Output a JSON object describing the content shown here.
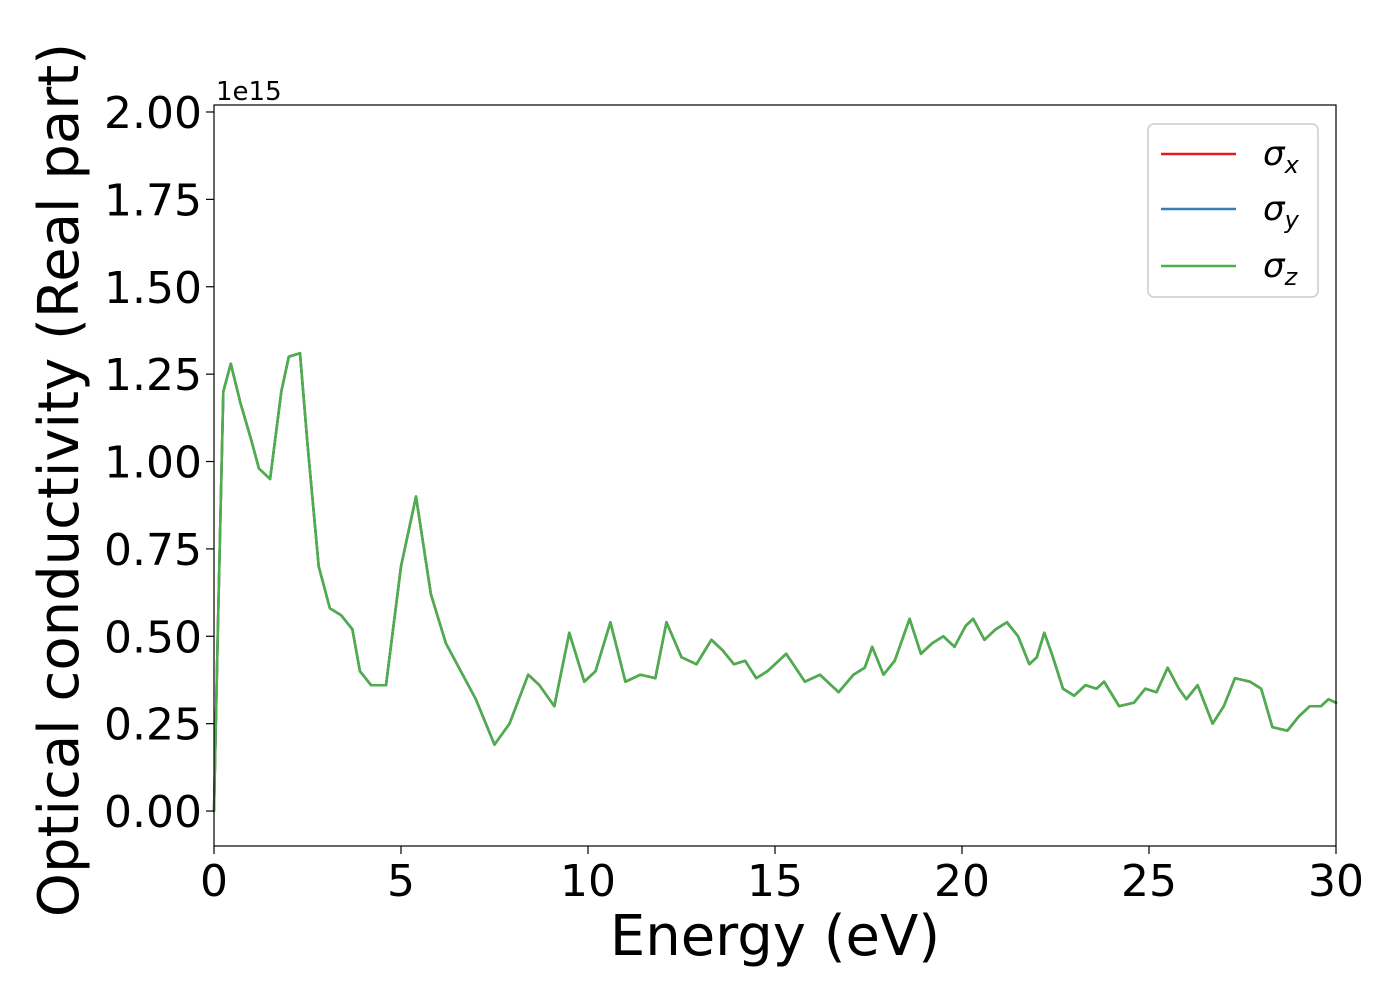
{
  "chart_data": {
    "type": "line",
    "xlabel": "Energy (eV)",
    "ylabel": "Optical conductivity (Real part)",
    "y_offset_label": "1e15",
    "xlim": [
      0,
      30
    ],
    "ylim": [
      -0.1,
      2.02
    ],
    "y_multiplier": 1000000000000000.0,
    "grid": false,
    "legend_position": "top-right",
    "x_ticks": [
      0,
      5,
      10,
      15,
      20,
      25,
      30
    ],
    "x_tick_labels": [
      "0",
      "5",
      "10",
      "15",
      "20",
      "25",
      "30"
    ],
    "y_ticks": [
      0,
      0.25,
      0.5,
      0.75,
      1.0,
      1.25,
      1.5,
      1.75,
      2.0
    ],
    "y_tick_labels": [
      "0.00",
      "0.25",
      "0.50",
      "0.75",
      "1.00",
      "1.25",
      "1.50",
      "1.75",
      "2.00"
    ],
    "x": [
      0,
      0.1,
      0.25,
      0.45,
      0.7,
      1.0,
      1.2,
      1.5,
      1.8,
      2.0,
      2.3,
      2.5,
      2.8,
      3.1,
      3.4,
      3.7,
      3.9,
      4.2,
      4.6,
      5.0,
      5.4,
      5.8,
      6.2,
      6.6,
      7.0,
      7.5,
      7.9,
      8.4,
      8.7,
      9.1,
      9.5,
      9.9,
      10.2,
      10.6,
      11.0,
      11.4,
      11.8,
      12.1,
      12.5,
      12.9,
      13.3,
      13.6,
      13.9,
      14.2,
      14.5,
      14.8,
      15.3,
      15.8,
      16.2,
      16.7,
      17.1,
      17.4,
      17.6,
      17.9,
      18.2,
      18.6,
      18.9,
      19.2,
      19.5,
      19.8,
      20.1,
      20.3,
      20.6,
      20.9,
      21.2,
      21.5,
      21.8,
      22.0,
      22.2,
      22.4,
      22.7,
      23.0,
      23.3,
      23.6,
      23.8,
      24.2,
      24.6,
      24.9,
      25.2,
      25.5,
      25.8,
      26.0,
      26.3,
      26.7,
      27.0,
      27.3,
      27.7,
      28.0,
      28.3,
      28.7,
      29.0,
      29.3,
      29.6,
      29.8,
      30.0
    ],
    "series": [
      {
        "name": "σx",
        "color": "#e41a1c",
        "values": [
          0.0,
          0.5,
          1.2,
          1.28,
          1.17,
          1.06,
          0.98,
          0.95,
          1.2,
          1.3,
          1.31,
          1.05,
          0.7,
          0.58,
          0.56,
          0.52,
          0.4,
          0.36,
          0.36,
          0.7,
          0.9,
          0.62,
          0.48,
          0.4,
          0.32,
          0.19,
          0.25,
          0.39,
          0.36,
          0.3,
          0.51,
          0.37,
          0.4,
          0.54,
          0.37,
          0.39,
          0.38,
          0.54,
          0.44,
          0.42,
          0.49,
          0.46,
          0.42,
          0.43,
          0.38,
          0.4,
          0.45,
          0.37,
          0.39,
          0.34,
          0.39,
          0.41,
          0.47,
          0.39,
          0.43,
          0.55,
          0.45,
          0.48,
          0.5,
          0.47,
          0.53,
          0.55,
          0.49,
          0.52,
          0.54,
          0.5,
          0.42,
          0.44,
          0.51,
          0.45,
          0.35,
          0.33,
          0.36,
          0.35,
          0.37,
          0.3,
          0.31,
          0.35,
          0.34,
          0.41,
          0.35,
          0.32,
          0.36,
          0.25,
          0.3,
          0.38,
          0.37,
          0.35,
          0.24,
          0.23,
          0.27,
          0.3,
          0.3,
          0.32,
          0.31
        ]
      },
      {
        "name": "σy",
        "color": "#377eb8",
        "values": [
          0.0,
          0.5,
          1.2,
          1.28,
          1.17,
          1.06,
          0.98,
          0.95,
          1.2,
          1.3,
          1.31,
          1.05,
          0.7,
          0.58,
          0.56,
          0.52,
          0.4,
          0.36,
          0.36,
          0.7,
          0.9,
          0.62,
          0.48,
          0.4,
          0.32,
          0.19,
          0.25,
          0.39,
          0.36,
          0.3,
          0.51,
          0.37,
          0.4,
          0.54,
          0.37,
          0.39,
          0.38,
          0.54,
          0.44,
          0.42,
          0.49,
          0.46,
          0.42,
          0.43,
          0.38,
          0.4,
          0.45,
          0.37,
          0.39,
          0.34,
          0.39,
          0.41,
          0.47,
          0.39,
          0.43,
          0.55,
          0.45,
          0.48,
          0.5,
          0.47,
          0.53,
          0.55,
          0.49,
          0.52,
          0.54,
          0.5,
          0.42,
          0.44,
          0.51,
          0.45,
          0.35,
          0.33,
          0.36,
          0.35,
          0.37,
          0.3,
          0.31,
          0.35,
          0.34,
          0.41,
          0.35,
          0.32,
          0.36,
          0.25,
          0.3,
          0.38,
          0.37,
          0.35,
          0.24,
          0.23,
          0.27,
          0.3,
          0.3,
          0.32,
          0.31
        ]
      },
      {
        "name": "σz",
        "color": "#4daf4a",
        "values": [
          0.0,
          0.5,
          1.2,
          1.28,
          1.17,
          1.06,
          0.98,
          0.95,
          1.2,
          1.3,
          1.31,
          1.05,
          0.7,
          0.58,
          0.56,
          0.52,
          0.4,
          0.36,
          0.36,
          0.7,
          0.9,
          0.62,
          0.48,
          0.4,
          0.32,
          0.19,
          0.25,
          0.39,
          0.36,
          0.3,
          0.51,
          0.37,
          0.4,
          0.54,
          0.37,
          0.39,
          0.38,
          0.54,
          0.44,
          0.42,
          0.49,
          0.46,
          0.42,
          0.43,
          0.38,
          0.4,
          0.45,
          0.37,
          0.39,
          0.34,
          0.39,
          0.41,
          0.47,
          0.39,
          0.43,
          0.55,
          0.45,
          0.48,
          0.5,
          0.47,
          0.53,
          0.55,
          0.49,
          0.52,
          0.54,
          0.5,
          0.42,
          0.44,
          0.51,
          0.45,
          0.35,
          0.33,
          0.36,
          0.35,
          0.37,
          0.3,
          0.31,
          0.35,
          0.34,
          0.41,
          0.35,
          0.32,
          0.36,
          0.25,
          0.3,
          0.38,
          0.37,
          0.35,
          0.24,
          0.23,
          0.27,
          0.3,
          0.3,
          0.32,
          0.31
        ]
      }
    ]
  }
}
